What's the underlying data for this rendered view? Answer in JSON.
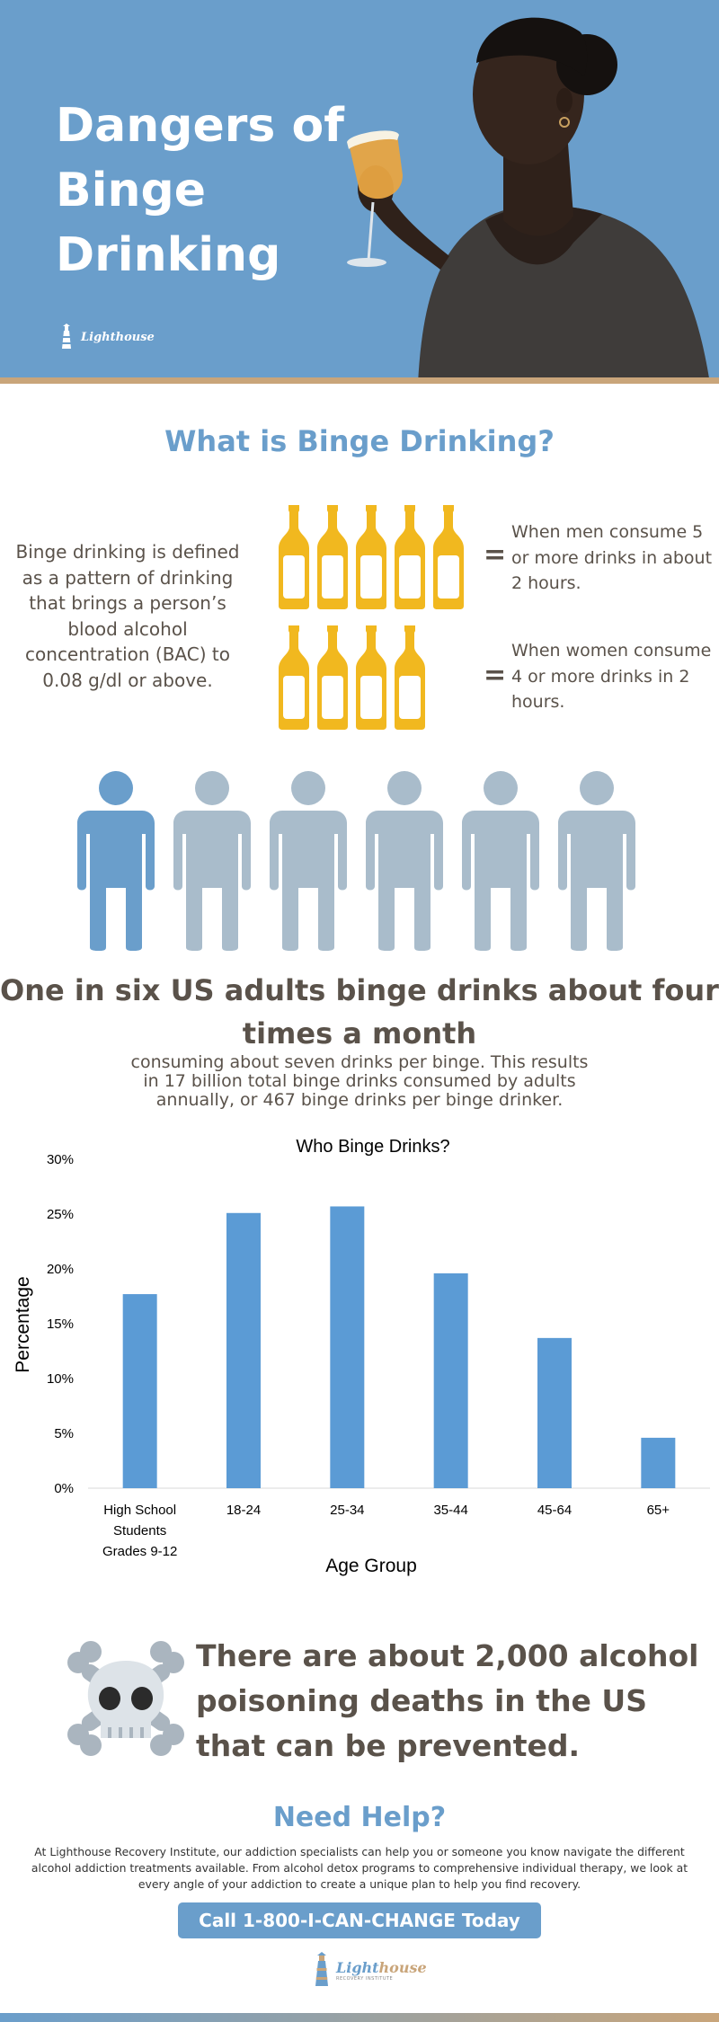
{
  "hero": {
    "title": "Dangers of Binge Drinking",
    "logo": "Lighthouse"
  },
  "definition": {
    "heading": "What is Binge Drinking?",
    "text": "Binge drinking is defined as a pattern of drinking that brings a person’s blood alcohol concentration (BAC) to 0.08 g/dl or above.",
    "men": {
      "bottles": 5,
      "equals": "=",
      "text": "When men consume 5 or more drinks in about 2 hours."
    },
    "women": {
      "bottles": 4,
      "equals": "=",
      "text": "When women consume 4 or more drinks in 2 hours."
    }
  },
  "people": {
    "total": 6,
    "highlighted": 1,
    "highlight_color": "#6a9ecb",
    "base_color": "#a9bccb"
  },
  "stat": {
    "headline": "One in six US adults binge drinks about four times a month",
    "sub_lines": [
      "consuming about seven drinks per binge. This results",
      "in 17 billion total binge drinks consumed by adults",
      "annually, or 467 binge drinks per binge drinker."
    ]
  },
  "chart_data": {
    "type": "bar",
    "title": "Who Binge Drinks?",
    "xlabel": "Age Group",
    "ylabel": "Percentage",
    "categories": [
      [
        "High School",
        "Students",
        "Grades 9-12"
      ],
      [
        "18-24"
      ],
      [
        "25-34"
      ],
      [
        "35-44"
      ],
      [
        "45-64"
      ],
      [
        "65+"
      ]
    ],
    "values": [
      17.7,
      25.1,
      25.7,
      19.6,
      13.7,
      4.6
    ],
    "ylim": [
      0,
      30
    ],
    "yticks": [
      "0%",
      "5%",
      "10%",
      "15%",
      "20%",
      "25%",
      "30%"
    ],
    "bar_color": "#5b9bd5",
    "grid": false
  },
  "poison": {
    "text": "There are about 2,000 alcohol poisoning deaths in the US that can be prevented."
  },
  "help": {
    "heading": "Need Help?",
    "body": "At Lighthouse Recovery Institute, our addiction specialists can help you or someone you know navigate the different alcohol addiction treatments available. From alcohol detox programs to comprehensive individual therapy, we look at every angle of your addiction to create a unique plan to help you find recovery.",
    "cta": "Call 1-800-I-CAN-CHANGE Today",
    "logo_main": "Light",
    "logo_accent": "house",
    "logo_sub": "RECOVERY INSTITUTE"
  },
  "colors": {
    "accent": "#6a9ecb",
    "text": "#5a524a",
    "bottle": "#f1b81f"
  }
}
